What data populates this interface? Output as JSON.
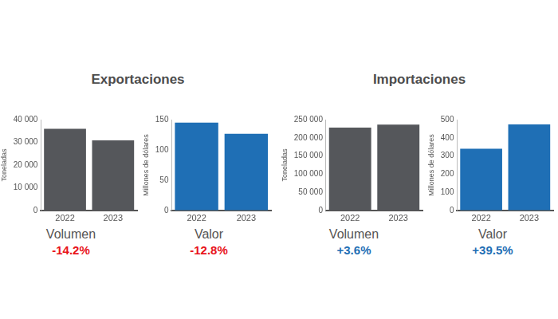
{
  "chart_data": [
    {
      "type": "bar",
      "title": "Exportaciones",
      "categories": [
        "2022",
        "2023"
      ],
      "values": [
        36000,
        30900
      ],
      "color": "#55575b",
      "ylabel": "Toneladas",
      "xlabel": "Volumen",
      "annotation": "-14.2%",
      "ylim": [
        0,
        40000
      ],
      "yticks": [
        0,
        {
          "value": 10000,
          "label": "10 000"
        },
        {
          "value": 20000,
          "label": "20 000"
        },
        {
          "value": 30000,
          "label": "30 000"
        },
        {
          "value": 40000,
          "label": "40 000"
        }
      ],
      "grid": false
    },
    {
      "type": "bar",
      "categories": [
        "2022",
        "2023"
      ],
      "values": [
        145,
        126.5
      ],
      "color": "#1f6fb5",
      "ylabel": "Millones de dólares",
      "xlabel": "Valor",
      "annotation": "-12.8%",
      "ylim": [
        0,
        150
      ],
      "yticks": [
        0,
        50,
        100,
        150
      ],
      "grid": false
    },
    {
      "type": "bar",
      "title": "Importaciones",
      "categories": [
        "2022",
        "2023"
      ],
      "values": [
        228000,
        236000
      ],
      "color": "#55575b",
      "ylabel": "Toneladas",
      "xlabel": "Volumen",
      "annotation": "+3.6%",
      "ylim": [
        0,
        250000
      ],
      "yticks": [
        0,
        {
          "value": 50000,
          "label": "50 000"
        },
        {
          "value": 100000,
          "label": "100 000"
        },
        {
          "value": 150000,
          "label": "150 000"
        },
        {
          "value": 200000,
          "label": "200 000"
        },
        {
          "value": 250000,
          "label": "250 000"
        }
      ],
      "grid": false
    },
    {
      "type": "bar",
      "categories": [
        "2022",
        "2023"
      ],
      "values": [
        340,
        474
      ],
      "color": "#1f6fb5",
      "ylabel": "Millones de dólares",
      "xlabel": "Valor",
      "annotation": "+39.5%",
      "ylim": [
        0,
        500
      ],
      "yticks": [
        0,
        100,
        200,
        300,
        400,
        500
      ],
      "grid": false
    }
  ]
}
